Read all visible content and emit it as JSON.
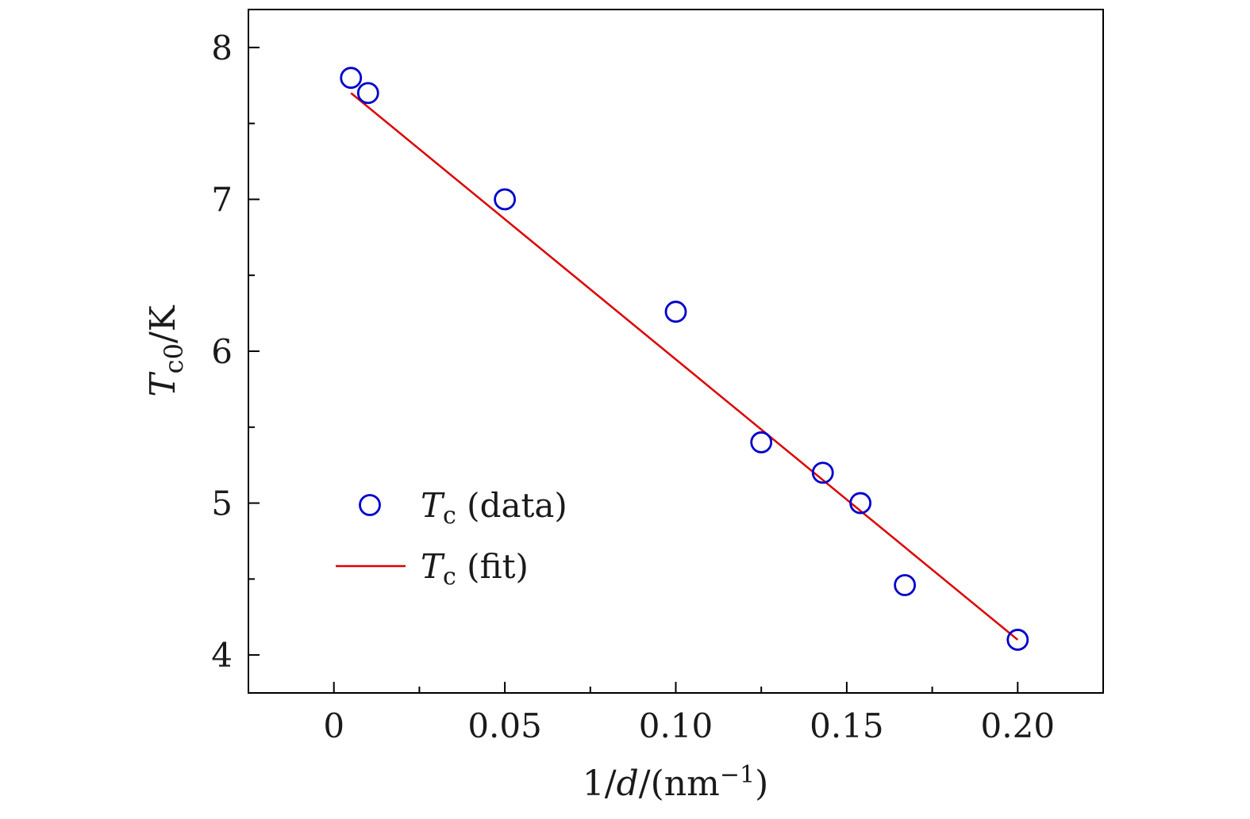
{
  "chart_data": {
    "type": "scatter",
    "title": "",
    "xlabel": {
      "pre": "1/",
      "var": "d",
      "mid": "/(nm",
      "sup": "−1",
      "post": ")"
    },
    "ylabel": {
      "var": "T",
      "sub": "c0",
      "post": "/K"
    },
    "xlim": [
      -0.025,
      0.225
    ],
    "ylim": [
      3.75,
      8.25
    ],
    "x_ticks": [
      0,
      0.05,
      0.1,
      0.15,
      0.2
    ],
    "x_tick_labels": [
      "0",
      "0.05",
      "0.10",
      "0.15",
      "0.20"
    ],
    "x_minor_ticks": [
      0.025,
      0.075,
      0.125,
      0.175
    ],
    "y_ticks": [
      4,
      5,
      6,
      7,
      8
    ],
    "y_tick_labels": [
      "4",
      "5",
      "6",
      "7",
      "8"
    ],
    "y_minor_ticks": [
      4.5,
      5.5,
      6.5,
      7.5
    ],
    "grid": false,
    "legend_position": "lower-left",
    "series": [
      {
        "name": "data",
        "label_var": "T",
        "label_sub": "c",
        "label_rest": " (data)",
        "kind": "scatter",
        "marker": "open-circle",
        "color": "#0000cc",
        "x": [
          0.005,
          0.01,
          0.05,
          0.1,
          0.125,
          0.143,
          0.154,
          0.167,
          0.2
        ],
        "y": [
          7.8,
          7.7,
          7.0,
          6.26,
          5.4,
          5.2,
          5.0,
          4.46,
          4.1
        ]
      },
      {
        "name": "fit",
        "label_var": "T",
        "label_sub": "c",
        "label_rest": " (fit)",
        "kind": "line",
        "color": "#dd0000",
        "x": [
          0.005,
          0.2
        ],
        "y": [
          7.7,
          4.1
        ]
      }
    ]
  }
}
